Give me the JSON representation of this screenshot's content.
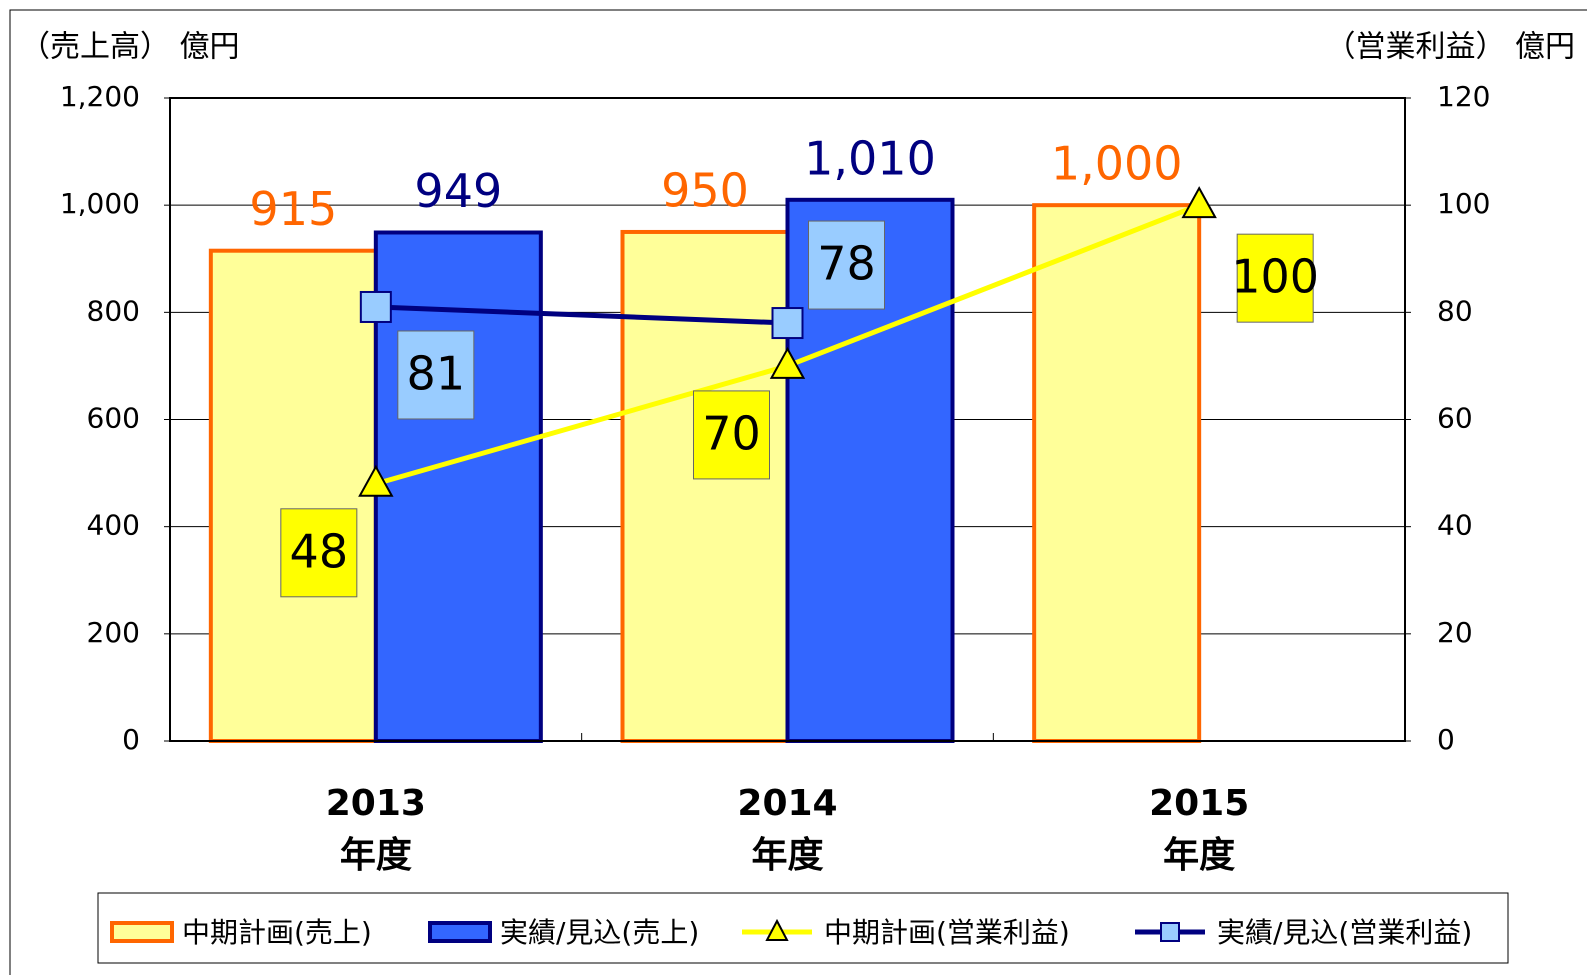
{
  "chart_data": {
    "type": "bar-line",
    "y_label": "（売上高） 億円",
    "y2_label": "（営業利益） 億円",
    "categories": [
      [
        "2013",
        "年度"
      ],
      [
        "2014",
        "年度"
      ],
      [
        "2015",
        "年度"
      ]
    ],
    "ylim": [
      0,
      1200
    ],
    "yticks": [
      0,
      200,
      400,
      600,
      800,
      {
        "value": 1000,
        "label": "1,000"
      },
      {
        "value": 1200,
        "label": "1,200"
      }
    ],
    "y2lim": [
      0,
      120
    ],
    "y2ticks": [
      0,
      20,
      40,
      60,
      80,
      100,
      120
    ],
    "grid": true,
    "legend": "bottom",
    "series": [
      {
        "name": "中期計画(売上)",
        "type": "bar",
        "color": "#ffff99",
        "edge": "#ff6600",
        "label_color": "#ff6600",
        "values": [
          915,
          950,
          1000
        ],
        "value_labels": [
          "915",
          "950",
          "1,000"
        ]
      },
      {
        "name": "実績/見込(売上)",
        "type": "bar",
        "color": "#3366ff",
        "edge": "#000080",
        "label_color": "#000080",
        "values": [
          949,
          1010,
          null
        ],
        "value_labels": [
          "949",
          "1,010",
          null
        ]
      },
      {
        "name": "中期計画(営業利益)",
        "type": "line",
        "axis": "y2",
        "color": "#ffff00",
        "marker": "triangle",
        "marker_color": "#ffff00",
        "values": [
          48,
          70,
          100
        ]
      },
      {
        "name": "実績/見込(営業利益)",
        "type": "line",
        "axis": "y2",
        "color": "#000080",
        "marker": "square",
        "marker_color": "#99ccff",
        "values": [
          81,
          78,
          null
        ]
      }
    ]
  }
}
